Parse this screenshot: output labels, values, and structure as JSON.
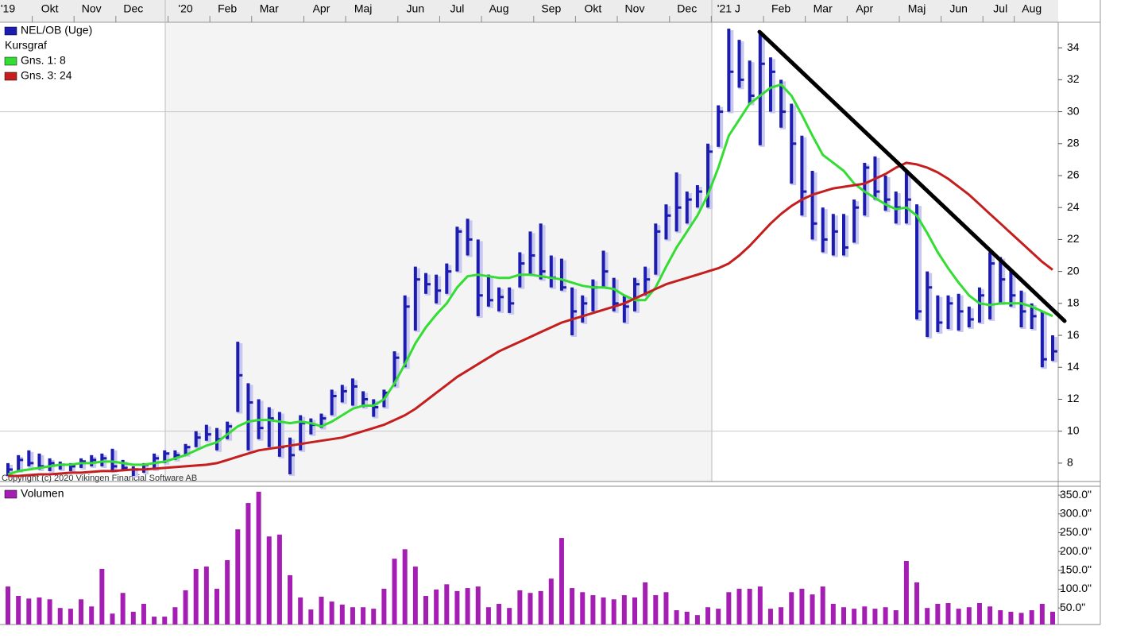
{
  "chart_data": [
    {
      "type": "ohlc",
      "categories": [
        "'19",
        null,
        null,
        null,
        "Okt",
        null,
        null,
        null,
        "Nov",
        null,
        null,
        null,
        "Dec",
        null,
        null,
        null,
        null,
        "'20",
        null,
        null,
        null,
        "Feb",
        null,
        null,
        null,
        "Mar",
        null,
        null,
        null,
        null,
        "Apr",
        null,
        null,
        null,
        "Maj",
        null,
        null,
        null,
        null,
        "Jun",
        null,
        null,
        null,
        "Jul",
        null,
        null,
        null,
        "Aug",
        null,
        null,
        null,
        null,
        "Sep",
        null,
        null,
        null,
        "Okt",
        null,
        null,
        null,
        "Nov",
        null,
        null,
        null,
        null,
        "Dec",
        null,
        null,
        null,
        "'21 J",
        null,
        null,
        null,
        null,
        "Feb",
        null,
        null,
        null,
        "Mar",
        null,
        null,
        null,
        "Apr",
        null,
        null,
        null,
        null,
        "Maj",
        null,
        null,
        null,
        "Jun",
        null,
        null,
        null,
        "Jul",
        null,
        null,
        "Aug",
        null,
        null
      ],
      "ohlc": {
        "name": "NEL/OB (Uge)",
        "color": "#1c1cb0",
        "high": [
          8.0,
          8.5,
          8.8,
          8.6,
          8.3,
          8.1,
          8.0,
          8.3,
          8.5,
          8.6,
          8.9,
          8.2,
          7.8,
          8.0,
          8.6,
          8.8,
          8.8,
          9.2,
          10.0,
          10.4,
          10.2,
          10.6,
          15.6,
          13.0,
          12.0,
          11.5,
          11.2,
          9.6,
          11.0,
          10.8,
          11.1,
          12.6,
          12.9,
          13.3,
          12.5,
          12.0,
          12.6,
          15.0,
          18.5,
          20.3,
          19.9,
          19.8,
          20.5,
          22.8,
          23.3,
          22.0,
          19.8,
          19.0,
          19.0,
          21.2,
          22.5,
          23.0,
          21.0,
          20.8,
          19.0,
          18.5,
          19.5,
          21.3,
          19.6,
          18.5,
          19.6,
          20.3,
          23.0,
          24.2,
          26.2,
          25.0,
          25.4,
          28.0,
          30.4,
          35.2,
          34.5,
          33.2,
          35.0,
          33.4,
          32.0,
          30.5,
          28.5,
          26.3,
          24.0,
          23.6,
          23.6,
          24.5,
          26.8,
          27.2,
          26.0,
          25.0,
          26.3,
          24.2,
          20.0,
          18.5,
          18.5,
          18.6,
          17.8,
          19.0,
          21.2,
          20.9,
          20.0,
          18.8,
          18.0,
          17.5,
          16.0
        ],
        "low": [
          7.2,
          7.5,
          7.8,
          7.6,
          7.5,
          7.6,
          7.5,
          7.7,
          7.8,
          7.8,
          7.5,
          7.6,
          7.2,
          7.4,
          7.6,
          8.0,
          8.2,
          8.5,
          9.0,
          9.4,
          8.8,
          9.5,
          11.2,
          8.8,
          9.5,
          9.0,
          8.4,
          7.3,
          8.8,
          9.8,
          10.2,
          11.0,
          11.8,
          11.6,
          11.5,
          10.9,
          11.5,
          12.8,
          14.0,
          16.3,
          18.6,
          18.0,
          18.6,
          20.0,
          21.0,
          17.2,
          17.8,
          17.5,
          17.4,
          19.0,
          19.8,
          19.5,
          19.0,
          18.8,
          16.0,
          16.8,
          17.5,
          19.0,
          17.5,
          16.8,
          17.5,
          18.5,
          19.8,
          22.0,
          22.5,
          23.0,
          24.0,
          24.0,
          27.8,
          30.0,
          31.5,
          30.5,
          27.9,
          30.0,
          29.0,
          25.5,
          23.5,
          22.0,
          21.2,
          21.0,
          21.0,
          21.8,
          23.5,
          24.5,
          23.8,
          23.0,
          23.0,
          17.0,
          15.9,
          16.2,
          16.4,
          16.3,
          16.5,
          16.8,
          17.0,
          18.0,
          17.8,
          16.5,
          16.4,
          14.0,
          14.4
        ],
        "close": [
          7.6,
          8.2,
          8.0,
          7.8,
          8.0,
          7.9,
          7.8,
          8.1,
          8.2,
          8.3,
          7.8,
          7.7,
          7.6,
          7.9,
          8.3,
          8.6,
          8.5,
          9.0,
          9.6,
          9.8,
          9.5,
          10.3,
          13.5,
          11.8,
          10.2,
          10.8,
          9.0,
          8.5,
          10.5,
          10.4,
          10.8,
          12.2,
          12.5,
          12.8,
          12.0,
          11.5,
          12.4,
          14.6,
          17.8,
          19.5,
          19.2,
          18.8,
          20.0,
          22.5,
          22.0,
          18.5,
          18.2,
          18.4,
          18.0,
          20.5,
          21.0,
          20.0,
          19.6,
          19.0,
          17.5,
          18.0,
          19.0,
          20.0,
          18.0,
          17.8,
          19.2,
          19.5,
          22.5,
          23.5,
          24.0,
          24.5,
          25.0,
          27.5,
          30.0,
          32.5,
          32.0,
          31.0,
          33.0,
          32.5,
          30.0,
          28.0,
          25.0,
          23.0,
          22.0,
          22.5,
          21.5,
          24.0,
          26.5,
          25.0,
          24.5,
          24.0,
          24.5,
          17.5,
          19.0,
          16.8,
          18.0,
          17.5,
          17.0,
          18.5,
          20.5,
          19.5,
          18.5,
          17.5,
          17.2,
          14.5,
          15.0
        ]
      },
      "subtitle": "Kursgraf",
      "series": [
        {
          "name": "Gns. 1: 8",
          "color": "#33dd33",
          "values": [
            7.3,
            7.5,
            7.6,
            7.7,
            7.8,
            7.9,
            7.9,
            8.0,
            8.0,
            8.1,
            8.1,
            8.0,
            7.9,
            7.9,
            8.0,
            8.1,
            8.3,
            8.5,
            8.8,
            9.1,
            9.3,
            9.8,
            10.3,
            10.6,
            10.7,
            10.7,
            10.6,
            10.5,
            10.6,
            10.5,
            10.3,
            10.6,
            11.0,
            11.4,
            11.6,
            11.6,
            12.0,
            13.0,
            14.2,
            15.5,
            16.5,
            17.3,
            18.0,
            19.0,
            19.7,
            19.8,
            19.7,
            19.6,
            19.6,
            19.8,
            19.8,
            19.7,
            19.6,
            19.5,
            19.3,
            19.1,
            19.0,
            19.0,
            18.9,
            18.5,
            18.2,
            18.2,
            19.0,
            20.3,
            21.5,
            22.5,
            23.5,
            24.8,
            26.5,
            28.5,
            29.5,
            30.5,
            31.0,
            31.5,
            31.7,
            31.0,
            29.8,
            28.5,
            27.3,
            26.8,
            26.3,
            25.5,
            25.0,
            24.6,
            24.2,
            23.9,
            24.0,
            23.5,
            22.4,
            21.2,
            20.2,
            19.3,
            18.5,
            18.0,
            17.9,
            18.0,
            18.0,
            18.0,
            17.8,
            17.5,
            17.2
          ]
        },
        {
          "name": "Gns. 3: 24",
          "color": "#c41e1e",
          "values": [
            7.2,
            7.2,
            7.25,
            7.3,
            7.3,
            7.35,
            7.4,
            7.4,
            7.45,
            7.5,
            7.5,
            7.55,
            7.6,
            7.6,
            7.65,
            7.7,
            7.75,
            7.8,
            7.85,
            7.9,
            8.0,
            8.2,
            8.4,
            8.6,
            8.8,
            8.9,
            9.0,
            9.1,
            9.2,
            9.3,
            9.4,
            9.5,
            9.6,
            9.8,
            10.0,
            10.2,
            10.4,
            10.7,
            11.0,
            11.4,
            11.9,
            12.4,
            12.9,
            13.4,
            13.8,
            14.2,
            14.6,
            15.0,
            15.3,
            15.6,
            15.9,
            16.2,
            16.5,
            16.8,
            17.0,
            17.2,
            17.4,
            17.6,
            17.8,
            18.0,
            18.3,
            18.6,
            18.9,
            19.2,
            19.4,
            19.6,
            19.8,
            20.0,
            20.2,
            20.5,
            21.0,
            21.6,
            22.3,
            23.0,
            23.6,
            24.1,
            24.5,
            24.8,
            25.0,
            25.2,
            25.3,
            25.4,
            25.5,
            25.8,
            26.1,
            26.5,
            26.8,
            26.7,
            26.5,
            26.2,
            25.8,
            25.3,
            24.8,
            24.2,
            23.6,
            23.0,
            22.4,
            21.8,
            21.2,
            20.6,
            20.1
          ]
        }
      ],
      "trendline": {
        "values": [
          35.0,
          16.9
        ],
        "color": "#000000"
      },
      "copyright": "Copyright (c) 2020 Vikingen Financial Software AB",
      "ylim": [
        6.9,
        35.6
      ],
      "yticks": [
        8,
        10,
        12,
        14,
        16,
        18,
        20,
        22,
        24,
        26,
        28,
        30,
        32,
        34
      ],
      "grid_y": [
        10,
        30
      ]
    },
    {
      "type": "bar",
      "name": "Volumen",
      "color": "#a51eb4",
      "values": [
        107,
        82,
        75,
        78,
        73,
        50,
        48,
        73,
        54,
        154,
        35,
        90,
        40,
        61,
        27,
        27,
        52,
        97,
        154,
        160,
        101,
        177,
        259,
        329,
        359,
        240,
        245,
        137,
        78,
        46,
        80,
        67,
        59,
        52,
        52,
        48,
        101,
        181,
        206,
        160,
        82,
        99,
        113,
        95,
        103,
        107,
        52,
        61,
        50,
        97,
        90,
        95,
        128,
        236,
        103,
        92,
        84,
        78,
        73,
        84,
        78,
        118,
        84,
        92,
        44,
        40,
        31,
        52,
        48,
        92,
        101,
        101,
        107,
        48,
        52,
        92,
        101,
        86,
        107,
        61,
        52,
        48,
        54,
        48,
        52,
        44,
        175,
        118,
        50,
        61,
        63,
        48,
        52,
        63,
        54,
        44,
        40,
        37,
        44,
        61,
        40
      ],
      "ylim": [
        6,
        365
      ],
      "yticks": [
        {
          "value": 50,
          "label": "50.0\""
        },
        {
          "value": 100,
          "label": "100.0\""
        },
        {
          "value": 150,
          "label": "150.0\""
        },
        {
          "value": 200,
          "label": "200.0\""
        },
        {
          "value": 250,
          "label": "250.0\""
        },
        {
          "value": 300,
          "label": "300.0\""
        },
        {
          "value": 350,
          "label": "350.0\""
        }
      ]
    }
  ]
}
